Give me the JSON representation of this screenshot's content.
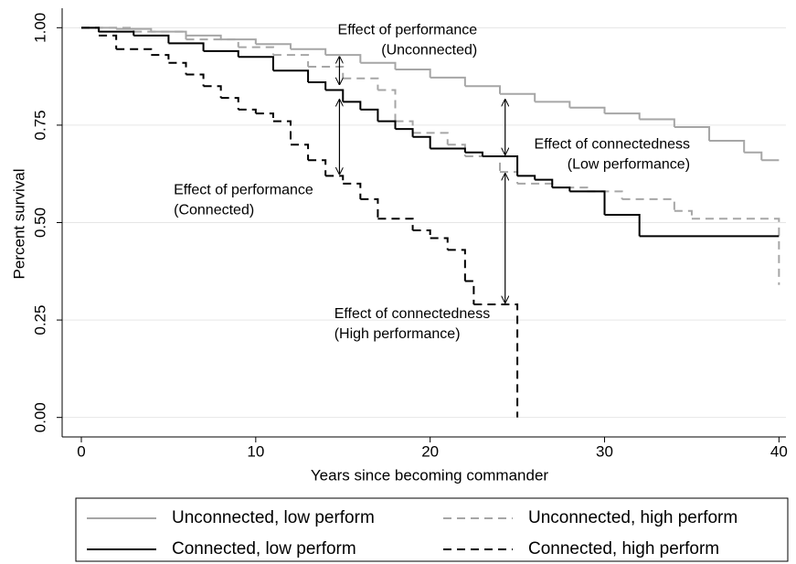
{
  "chart_data": {
    "type": "step",
    "xlabel": "Years since becoming commander",
    "ylabel": "Percent survival",
    "xlim": [
      -1.1,
      40.4
    ],
    "ylim": [
      -0.05,
      1.05
    ],
    "xticks": [
      0,
      10,
      20,
      30,
      40
    ],
    "yticks": [
      {
        "value": 0,
        "label": "0.00"
      },
      {
        "value": 0.25,
        "label": "0.25"
      },
      {
        "value": 0.5,
        "label": "0.50"
      },
      {
        "value": 0.75,
        "label": "0.75"
      },
      {
        "value": 1,
        "label": "1.00"
      }
    ],
    "grid": true,
    "grid_color": "#e6e6e6",
    "series": [
      {
        "name": "Unconnected, low perform",
        "color": "#a6a6a6",
        "style": "solid",
        "x": [
          0,
          2,
          4,
          6,
          8,
          10,
          12,
          14,
          16,
          18,
          20,
          22,
          24,
          26,
          28,
          30,
          32,
          34,
          36,
          38,
          39,
          40
        ],
        "values": [
          1.0,
          0.997,
          0.99,
          0.98,
          0.97,
          0.958,
          0.945,
          0.93,
          0.91,
          0.893,
          0.872,
          0.85,
          0.83,
          0.81,
          0.795,
          0.78,
          0.765,
          0.745,
          0.71,
          0.68,
          0.66,
          0.66
        ]
      },
      {
        "name": "Unconnected, high perform",
        "color": "#a6a6a6",
        "style": "dashed",
        "x": [
          0,
          3,
          6,
          9,
          11,
          13,
          15,
          17,
          18,
          19,
          21,
          22,
          24,
          25,
          27,
          29,
          31,
          34,
          35,
          40
        ],
        "values": [
          1.0,
          0.99,
          0.97,
          0.95,
          0.93,
          0.9,
          0.87,
          0.84,
          0.76,
          0.73,
          0.7,
          0.67,
          0.63,
          0.6,
          0.59,
          0.58,
          0.56,
          0.53,
          0.51,
          0.34
        ]
      },
      {
        "name": "Connected, low perform",
        "color": "#000000",
        "style": "solid",
        "x": [
          0,
          1,
          3,
          5,
          7,
          9,
          11,
          13,
          14,
          15,
          16,
          17,
          18,
          19,
          20,
          22,
          23,
          25,
          26,
          27,
          28,
          30,
          32,
          40
        ],
        "values": [
          1.0,
          0.99,
          0.98,
          0.96,
          0.94,
          0.925,
          0.89,
          0.86,
          0.84,
          0.81,
          0.79,
          0.76,
          0.74,
          0.72,
          0.69,
          0.68,
          0.67,
          0.62,
          0.61,
          0.59,
          0.58,
          0.52,
          0.465,
          0.465
        ]
      },
      {
        "name": "Connected, high perform",
        "color": "#000000",
        "style": "dashed",
        "x": [
          0,
          1,
          2,
          4,
          5,
          6,
          7,
          8,
          9,
          10,
          11,
          12,
          13,
          14,
          15,
          16,
          17,
          19,
          20,
          21,
          22,
          22.5,
          25
        ],
        "values": [
          1.0,
          0.98,
          0.945,
          0.93,
          0.91,
          0.88,
          0.85,
          0.82,
          0.79,
          0.78,
          0.76,
          0.7,
          0.66,
          0.62,
          0.6,
          0.56,
          0.51,
          0.48,
          0.46,
          0.43,
          0.35,
          0.29,
          0
        ]
      }
    ],
    "annotations": [
      {
        "text": [
          "Effect of performance",
          "(Unconnected)"
        ],
        "color": "#a6a6a6",
        "align": "end",
        "x": 22.7,
        "y": 0.993
      },
      {
        "text": [
          "Effect of connectedness",
          "(Low performance)"
        ],
        "color": "#a6a6a6",
        "align": "end",
        "x": 34.9,
        "y": 0.7
      },
      {
        "text": [
          "Effect of performance",
          "(Connected)"
        ],
        "color": "#000000",
        "align": "start",
        "x": 5.3,
        "y": 0.583
      },
      {
        "text": [
          "Effect of connectedness",
          "(High performance)"
        ],
        "color": "#000000",
        "align": "start",
        "x": 14.5,
        "y": 0.265
      }
    ],
    "arrows": [
      {
        "x": 14.8,
        "y": [
          0.93,
          0.85
        ]
      },
      {
        "x": 14.8,
        "y": [
          0.82,
          0.62
        ]
      },
      {
        "x": 24.3,
        "y": [
          0.82,
          0.67
        ]
      },
      {
        "x": 24.3,
        "y": [
          0.63,
          0.29
        ]
      }
    ]
  }
}
